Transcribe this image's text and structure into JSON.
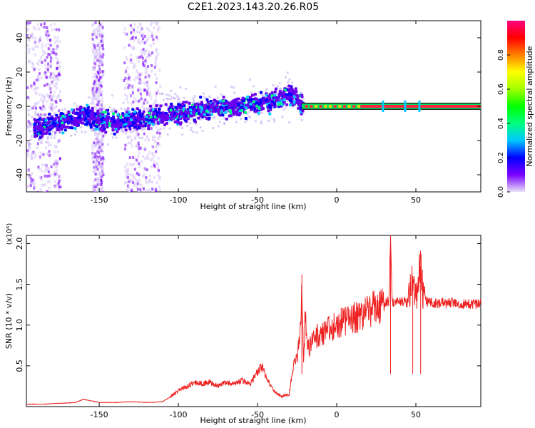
{
  "title": "C2E1.2023.143.20.26.R05",
  "chart_data": [
    {
      "type": "heatmap",
      "xlabel": "Height of straight line (km)",
      "ylabel": "Frequency (Hz)",
      "xlim": [
        -196,
        91
      ],
      "ylim": [
        -50,
        50
      ],
      "x_ticks": [
        -150,
        -100,
        -50,
        0,
        50
      ],
      "y_ticks": [
        -40,
        -20,
        0,
        20,
        40
      ],
      "colorbar": {
        "label": "Normalized spectral amplitude",
        "range": [
          0,
          1
        ],
        "ticks": [
          0.0,
          0.2,
          0.4,
          0.6,
          0.8
        ],
        "colors": [
          "#e8e0f8",
          "#7a00ff",
          "#0000ff",
          "#00c8ff",
          "#00ff80",
          "#00ff00",
          "#a0ff00",
          "#ffff00",
          "#ff8000",
          "#ff0000",
          "#ff0080"
        ]
      },
      "description_points": [
        {
          "x": -190,
          "f": -12
        },
        {
          "x": -160,
          "f": -5
        },
        {
          "x": -140,
          "f": -9
        },
        {
          "x": -120,
          "f": -6
        },
        {
          "x": -100,
          "f": -3
        },
        {
          "x": -80,
          "f": 0
        },
        {
          "x": -60,
          "f": 1
        },
        {
          "x": -40,
          "f": 4
        },
        {
          "x": -30,
          "f": 8
        },
        {
          "x": -20,
          "f": 0
        },
        {
          "x": 0,
          "f": 0
        },
        {
          "x": 50,
          "f": 0
        },
        {
          "x": 90,
          "f": 0
        }
      ]
    },
    {
      "type": "line",
      "xlabel": "Height of straight line (km)",
      "ylabel": "SNR (10 * v/v)",
      "y_multiplier": "(x10⁴)",
      "xlim": [
        -196,
        91
      ],
      "ylim": [
        0,
        2.1
      ],
      "x_ticks": [
        -150,
        -100,
        -50,
        0,
        50
      ],
      "y_ticks": [
        0.5,
        1.0,
        1.5,
        2.0
      ],
      "y_tick_labels": [
        "0.5",
        "1.0",
        "1.5",
        "2.0"
      ],
      "series": [
        {
          "color": "#ee2222",
          "x": [
            -196,
            -185,
            -175,
            -165,
            -160,
            -155,
            -150,
            -140,
            -130,
            -120,
            -110,
            -105,
            -100,
            -95,
            -90,
            -85,
            -80,
            -75,
            -70,
            -65,
            -60,
            -55,
            -50,
            -47,
            -45,
            -40,
            -35,
            -30,
            -28,
            -25,
            -23,
            -22,
            -21,
            -20,
            -18,
            -15,
            -10,
            -5,
            0,
            5,
            10,
            15,
            20,
            25,
            30,
            33,
            34,
            35,
            40,
            45,
            48,
            50,
            53,
            55,
            60,
            70,
            80,
            91
          ],
          "y": [
            0.03,
            0.03,
            0.04,
            0.05,
            0.09,
            0.07,
            0.05,
            0.05,
            0.06,
            0.05,
            0.06,
            0.12,
            0.2,
            0.24,
            0.3,
            0.28,
            0.3,
            0.25,
            0.3,
            0.27,
            0.32,
            0.28,
            0.42,
            0.5,
            0.38,
            0.2,
            0.12,
            0.15,
            0.45,
            0.62,
            0.88,
            1.62,
            0.55,
            1.05,
            0.72,
            0.82,
            0.9,
            0.95,
            1.0,
            1.05,
            1.08,
            1.12,
            1.18,
            1.22,
            1.25,
            1.3,
            2.05,
            1.28,
            1.3,
            1.27,
            1.6,
            1.32,
            1.72,
            1.3,
            1.27,
            1.27,
            1.26,
            1.26
          ]
        }
      ]
    }
  ]
}
